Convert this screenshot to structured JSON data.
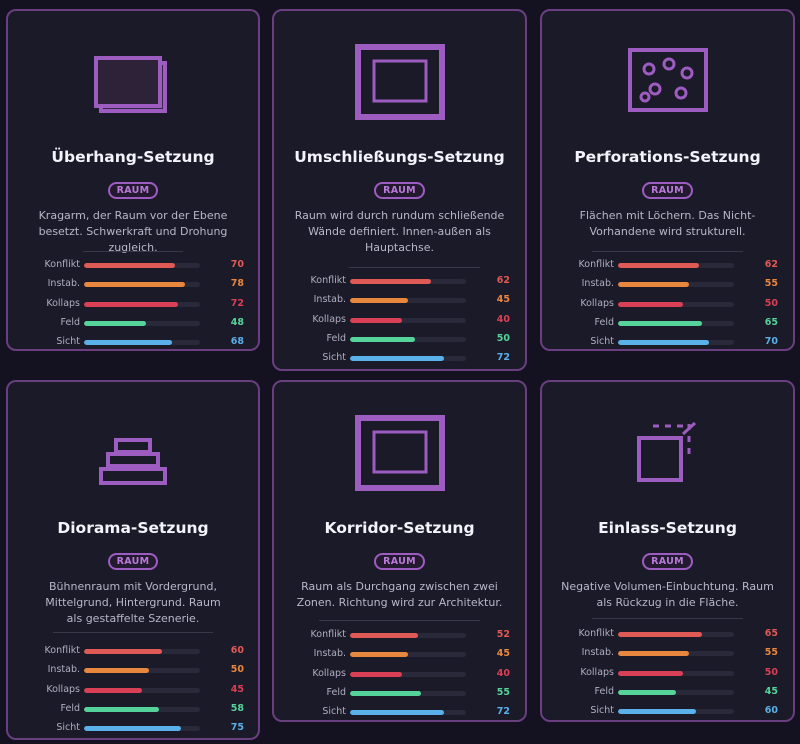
{
  "colors": {
    "konflikt": "#e05a55",
    "instab": "#e8873e",
    "kollaps": "#d94055",
    "feld": "#56d39a",
    "sicht": "#5ab0e8",
    "accent": "#9d5cc0"
  },
  "stat_labels": [
    "Konflikt",
    "Instab.",
    "Kollaps",
    "Feld",
    "Sicht"
  ],
  "cards": [
    {
      "title": "Überhang-Setzung",
      "badge": "RAUM",
      "icon": "overhang-icon",
      "description": "Kragarm, der Raum vor der Ebene besetzt. Schwerkraft und Drohung zugleich.",
      "stats": [
        70,
        78,
        72,
        48,
        68
      ]
    },
    {
      "title": "Umschließungs-Setzung",
      "badge": "RAUM",
      "icon": "enclosure-icon",
      "description": "Raum wird durch rundum schließende Wände definiert. Innen-außen als Hauptachse.",
      "stats": [
        62,
        45,
        40,
        50,
        72
      ]
    },
    {
      "title": "Perforations-Setzung",
      "badge": "RAUM",
      "icon": "perforation-icon",
      "description": "Flächen mit Löchern. Das Nicht-Vorhandene wird strukturell.",
      "stats": [
        62,
        55,
        50,
        65,
        70
      ]
    },
    {
      "title": "Diorama-Setzung",
      "badge": "RAUM",
      "icon": "diorama-icon",
      "description": "Bühnenraum mit Vordergrund, Mittelgrund, Hintergrund. Raum als gestaffelte Szenerie.",
      "stats": [
        60,
        50,
        45,
        58,
        75
      ]
    },
    {
      "title": "Korridor-Setzung",
      "badge": "RAUM",
      "icon": "corridor-icon",
      "description": "Raum als Durchgang zwischen zwei Zonen. Richtung wird zur Architektur.",
      "stats": [
        52,
        45,
        40,
        55,
        72
      ]
    },
    {
      "title": "Einlass-Setzung",
      "badge": "RAUM",
      "icon": "inlet-icon",
      "description": "Negative Volumen-Einbuchtung. Raum als Rückzug in die Fläche.",
      "stats": [
        65,
        55,
        50,
        45,
        60
      ]
    }
  ]
}
